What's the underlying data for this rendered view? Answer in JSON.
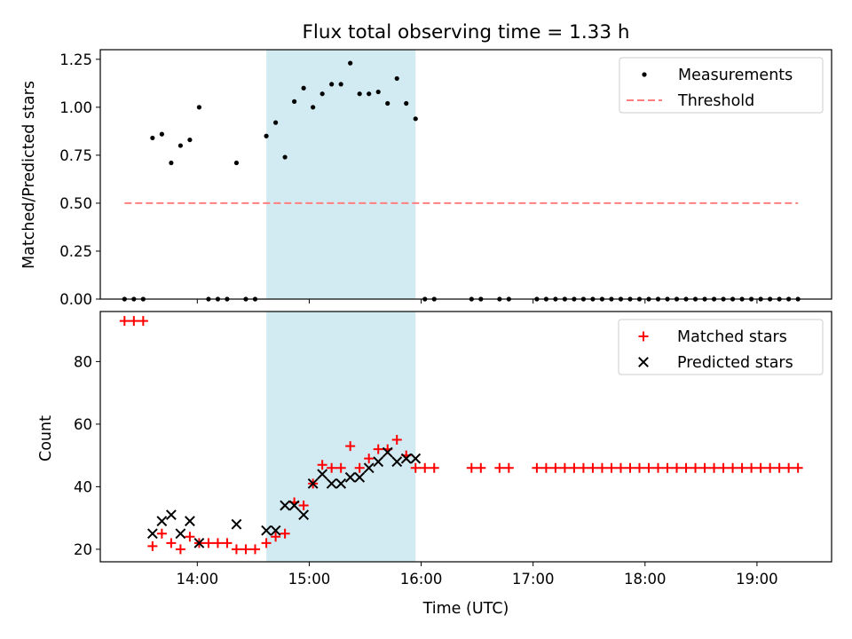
{
  "chart_data": [
    {
      "type": "scatter",
      "title": "Flux total observing time = 1.33 h",
      "xlabel": "",
      "ylabel": "Matched/Predicted stars",
      "xlim": [
        "13:08",
        "19:40"
      ],
      "ylim": [
        0,
        1.3
      ],
      "yticks": [
        "0.00",
        "0.25",
        "0.50",
        "0.75",
        "1.00",
        "1.25"
      ],
      "x_tick_labels_shown": false,
      "grid": false,
      "legend_position": "top-right",
      "shaded_interval": {
        "start": "14:37",
        "end": "15:57",
        "color": "#add8e6"
      },
      "series": [
        {
          "name": "Measurements",
          "marker": "dot",
          "color": "#000000",
          "points": [
            [
              "13:21",
              0
            ],
            [
              "13:26",
              0
            ],
            [
              "13:31",
              0
            ],
            [
              "13:36",
              0.84
            ],
            [
              "13:41",
              0.86
            ],
            [
              "13:46",
              0.71
            ],
            [
              "13:51",
              0.8
            ],
            [
              "13:56",
              0.83
            ],
            [
              "14:01",
              1.0
            ],
            [
              "14:06",
              0
            ],
            [
              "14:11",
              0
            ],
            [
              "14:16",
              0
            ],
            [
              "14:21",
              0.71
            ],
            [
              "14:26",
              0
            ],
            [
              "14:31",
              0
            ],
            [
              "14:37",
              0.85
            ],
            [
              "14:42",
              0.92
            ],
            [
              "14:47",
              0.74
            ],
            [
              "14:52",
              1.03
            ],
            [
              "14:57",
              1.1
            ],
            [
              "15:02",
              1.0
            ],
            [
              "15:07",
              1.07
            ],
            [
              "15:12",
              1.12
            ],
            [
              "15:17",
              1.12
            ],
            [
              "15:22",
              1.23
            ],
            [
              "15:27",
              1.07
            ],
            [
              "15:32",
              1.07
            ],
            [
              "15:37",
              1.08
            ],
            [
              "15:42",
              1.02
            ],
            [
              "15:47",
              1.15
            ],
            [
              "15:52",
              1.02
            ],
            [
              "15:57",
              0.94
            ],
            [
              "16:02",
              0
            ],
            [
              "16:07",
              0
            ],
            [
              "16:27",
              0
            ],
            [
              "16:32",
              0
            ],
            [
              "16:42",
              0
            ],
            [
              "16:47",
              0
            ],
            [
              "17:02",
              0
            ],
            [
              "17:07",
              0
            ],
            [
              "17:12",
              0
            ],
            [
              "17:17",
              0
            ],
            [
              "17:22",
              0
            ],
            [
              "17:27",
              0
            ],
            [
              "17:32",
              0
            ],
            [
              "17:37",
              0
            ],
            [
              "17:42",
              0
            ],
            [
              "17:47",
              0
            ],
            [
              "17:52",
              0
            ],
            [
              "17:57",
              0
            ],
            [
              "18:02",
              0
            ],
            [
              "18:07",
              0
            ],
            [
              "18:12",
              0
            ],
            [
              "18:17",
              0
            ],
            [
              "18:22",
              0
            ],
            [
              "18:27",
              0
            ],
            [
              "18:32",
              0
            ],
            [
              "18:37",
              0
            ],
            [
              "18:42",
              0
            ],
            [
              "18:47",
              0
            ],
            [
              "18:52",
              0
            ],
            [
              "18:57",
              0
            ],
            [
              "19:02",
              0
            ],
            [
              "19:07",
              0
            ],
            [
              "19:12",
              0
            ],
            [
              "19:17",
              0
            ],
            [
              "19:22",
              0
            ]
          ]
        },
        {
          "name": "Threshold",
          "marker": "dashed-line",
          "color": "#ff7f7f",
          "points": [
            [
              "13:21",
              0.5
            ],
            [
              "19:22",
              0.5
            ]
          ]
        }
      ]
    },
    {
      "type": "scatter",
      "title": "",
      "xlabel": "Time (UTC)",
      "ylabel": "Count",
      "xlim": [
        "13:08",
        "19:40"
      ],
      "ylim": [
        16,
        96
      ],
      "yticks": [
        "20",
        "40",
        "60",
        "80"
      ],
      "xticks": [
        "14:00",
        "15:00",
        "16:00",
        "17:00",
        "18:00",
        "19:00"
      ],
      "grid": false,
      "legend_position": "top-right",
      "shaded_interval": {
        "start": "14:37",
        "end": "15:57",
        "color": "#add8e6"
      },
      "series": [
        {
          "name": "Matched stars",
          "marker": "plus",
          "color": "#ff0000",
          "points": [
            [
              "13:21",
              93
            ],
            [
              "13:26",
              93
            ],
            [
              "13:31",
              93
            ],
            [
              "13:36",
              21
            ],
            [
              "13:41",
              25
            ],
            [
              "13:46",
              22
            ],
            [
              "13:51",
              20
            ],
            [
              "13:56",
              24
            ],
            [
              "14:01",
              22
            ],
            [
              "14:06",
              22
            ],
            [
              "14:11",
              22
            ],
            [
              "14:16",
              22
            ],
            [
              "14:21",
              20
            ],
            [
              "14:26",
              20
            ],
            [
              "14:31",
              20
            ],
            [
              "14:37",
              22
            ],
            [
              "14:42",
              24
            ],
            [
              "14:47",
              25
            ],
            [
              "14:52",
              35
            ],
            [
              "14:57",
              34
            ],
            [
              "15:02",
              41
            ],
            [
              "15:07",
              47
            ],
            [
              "15:12",
              46
            ],
            [
              "15:17",
              46
            ],
            [
              "15:22",
              53
            ],
            [
              "15:27",
              46
            ],
            [
              "15:32",
              49
            ],
            [
              "15:37",
              52
            ],
            [
              "15:42",
              52
            ],
            [
              "15:47",
              55
            ],
            [
              "15:52",
              50
            ],
            [
              "15:57",
              46
            ],
            [
              "16:02",
              46
            ],
            [
              "16:07",
              46
            ],
            [
              "16:27",
              46
            ],
            [
              "16:32",
              46
            ],
            [
              "16:42",
              46
            ],
            [
              "16:47",
              46
            ],
            [
              "17:02",
              46
            ],
            [
              "17:07",
              46
            ],
            [
              "17:12",
              46
            ],
            [
              "17:17",
              46
            ],
            [
              "17:22",
              46
            ],
            [
              "17:27",
              46
            ],
            [
              "17:32",
              46
            ],
            [
              "17:37",
              46
            ],
            [
              "17:42",
              46
            ],
            [
              "17:47",
              46
            ],
            [
              "17:52",
              46
            ],
            [
              "17:57",
              46
            ],
            [
              "18:02",
              46
            ],
            [
              "18:07",
              46
            ],
            [
              "18:12",
              46
            ],
            [
              "18:17",
              46
            ],
            [
              "18:22",
              46
            ],
            [
              "18:27",
              46
            ],
            [
              "18:32",
              46
            ],
            [
              "18:37",
              46
            ],
            [
              "18:42",
              46
            ],
            [
              "18:47",
              46
            ],
            [
              "18:52",
              46
            ],
            [
              "18:57",
              46
            ],
            [
              "19:02",
              46
            ],
            [
              "19:07",
              46
            ],
            [
              "19:12",
              46
            ],
            [
              "19:17",
              46
            ],
            [
              "19:22",
              46
            ]
          ]
        },
        {
          "name": "Predicted stars",
          "marker": "x",
          "color": "#000000",
          "points": [
            [
              "13:36",
              25
            ],
            [
              "13:41",
              29
            ],
            [
              "13:46",
              31
            ],
            [
              "13:51",
              25
            ],
            [
              "13:56",
              29
            ],
            [
              "14:01",
              22
            ],
            [
              "14:21",
              28
            ],
            [
              "14:37",
              26
            ],
            [
              "14:42",
              26
            ],
            [
              "14:47",
              34
            ],
            [
              "14:52",
              34
            ],
            [
              "14:57",
              31
            ],
            [
              "15:02",
              41
            ],
            [
              "15:07",
              44
            ],
            [
              "15:12",
              41
            ],
            [
              "15:17",
              41
            ],
            [
              "15:22",
              43
            ],
            [
              "15:27",
              43
            ],
            [
              "15:32",
              46
            ],
            [
              "15:37",
              48
            ],
            [
              "15:42",
              51
            ],
            [
              "15:47",
              48
            ],
            [
              "15:52",
              49
            ],
            [
              "15:57",
              49
            ]
          ]
        }
      ]
    }
  ]
}
